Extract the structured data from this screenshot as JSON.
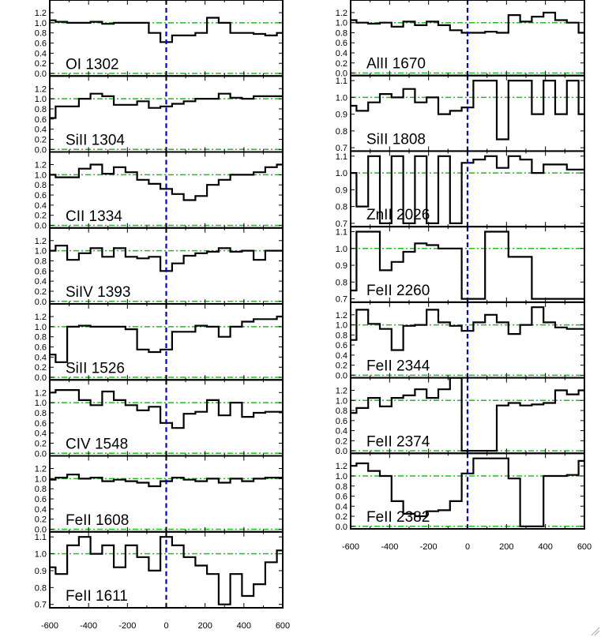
{
  "chart_data": {
    "type": "line",
    "line_style": "step",
    "x_tick_labels": [
      "-600",
      "-400",
      "-200",
      "0",
      "200",
      "400",
      "600"
    ],
    "xlim": [
      -600,
      600
    ],
    "reference_lines": {
      "velocity_zero": 0,
      "continuum": 1.0,
      "zero_flux": 0.0
    },
    "colors": {
      "spectrum": "#000000",
      "velocity_zero": "#0000dd",
      "reference": "#22bb22"
    },
    "columns": [
      {
        "panels": [
          {
            "label": "OI 1302",
            "ylim": [
              -0.05,
              1.45
            ],
            "yticks": [
              "0.0",
              "0.2",
              "0.4",
              "0.6",
              "0.8",
              "1.0",
              "1.2"
            ],
            "x": [
              -600,
              -540,
              -480,
              -420,
              -360,
              -300,
              -240,
              -180,
              -120,
              -60,
              0,
              60,
              120,
              180,
              240,
              300,
              360,
              420,
              480,
              540,
              600
            ],
            "y": [
              1.05,
              1.02,
              1.0,
              1.0,
              1.02,
              0.98,
              1.0,
              1.0,
              1.0,
              0.8,
              0.62,
              0.75,
              0.75,
              0.8,
              1.1,
              1.0,
              0.8,
              0.8,
              0.78,
              0.75,
              0.8
            ]
          },
          {
            "label": "SiII 1304",
            "ylim": [
              -0.05,
              1.45
            ],
            "yticks": [
              "0.0",
              "0.2",
              "0.4",
              "0.6",
              "0.8",
              "1.0",
              "1.2"
            ],
            "x": [
              -600,
              -540,
              -480,
              -420,
              -360,
              -300,
              -240,
              -180,
              -120,
              -60,
              0,
              60,
              120,
              180,
              240,
              300,
              360,
              420,
              480,
              540,
              600
            ],
            "y": [
              0.62,
              0.85,
              0.85,
              1.0,
              1.1,
              1.05,
              0.88,
              0.88,
              0.95,
              0.82,
              0.85,
              0.9,
              0.95,
              1.0,
              1.0,
              1.1,
              1.02,
              1.0,
              1.05,
              1.05,
              1.05
            ]
          },
          {
            "label": "CII 1334",
            "ylim": [
              -0.05,
              1.45
            ],
            "yticks": [
              "0.0",
              "0.2",
              "0.4",
              "0.6",
              "0.8",
              "1.0",
              "1.2"
            ],
            "x": [
              -600,
              -540,
              -480,
              -420,
              -360,
              -300,
              -240,
              -180,
              -120,
              -60,
              0,
              60,
              120,
              180,
              240,
              300,
              360,
              420,
              480,
              540,
              600
            ],
            "y": [
              1.0,
              0.95,
              0.95,
              1.12,
              1.2,
              1.02,
              1.15,
              1.05,
              0.9,
              0.82,
              0.72,
              0.62,
              0.5,
              0.58,
              0.8,
              0.9,
              1.0,
              1.0,
              1.05,
              1.15,
              1.2
            ]
          },
          {
            "label": "SiIV 1393",
            "ylim": [
              -0.05,
              1.45
            ],
            "yticks": [
              "0.0",
              "0.2",
              "0.4",
              "0.6",
              "0.8",
              "1.0",
              "1.2"
            ],
            "x": [
              -600,
              -540,
              -480,
              -420,
              -360,
              -300,
              -240,
              -180,
              -120,
              -60,
              0,
              60,
              120,
              180,
              240,
              300,
              360,
              420,
              480,
              540,
              600
            ],
            "y": [
              1.0,
              1.1,
              0.82,
              0.95,
              1.05,
              0.88,
              1.05,
              0.88,
              0.85,
              0.88,
              0.6,
              0.75,
              0.9,
              0.95,
              0.98,
              1.05,
              0.98,
              1.0,
              0.82,
              1.0,
              1.0
            ]
          },
          {
            "label": "SiII 1526",
            "ylim": [
              -0.05,
              1.45
            ],
            "yticks": [
              "0.0",
              "0.2",
              "0.4",
              "0.6",
              "0.8",
              "1.0",
              "1.2"
            ],
            "x": [
              -600,
              -540,
              -480,
              -420,
              -360,
              -300,
              -240,
              -180,
              -120,
              -60,
              0,
              60,
              120,
              180,
              240,
              300,
              360,
              420,
              480,
              540,
              600
            ],
            "y": [
              0.45,
              0.3,
              1.0,
              1.02,
              1.0,
              1.0,
              1.0,
              0.95,
              0.55,
              0.5,
              0.55,
              0.9,
              0.9,
              1.02,
              1.0,
              0.8,
              1.0,
              1.1,
              1.15,
              1.15,
              1.2
            ]
          },
          {
            "label": "CIV 1548",
            "ylim": [
              -0.05,
              1.45
            ],
            "yticks": [
              "0.0",
              "0.2",
              "0.4",
              "0.6",
              "0.8",
              "1.0",
              "1.2"
            ],
            "x": [
              -600,
              -540,
              -480,
              -420,
              -360,
              -300,
              -240,
              -180,
              -120,
              -60,
              0,
              60,
              120,
              180,
              240,
              300,
              360,
              420,
              480,
              540,
              600
            ],
            "y": [
              1.2,
              1.25,
              1.25,
              1.05,
              0.95,
              1.22,
              1.05,
              0.95,
              0.85,
              0.92,
              0.6,
              0.5,
              0.78,
              0.82,
              1.05,
              0.75,
              1.0,
              0.72,
              0.8,
              0.82,
              0.82
            ]
          },
          {
            "label": "FeII 1608",
            "ylim": [
              -0.05,
              1.45
            ],
            "yticks": [
              "0.0",
              "0.2",
              "0.4",
              "0.6",
              "0.8",
              "1.0",
              "1.2"
            ],
            "x": [
              -600,
              -540,
              -480,
              -420,
              -360,
              -300,
              -240,
              -180,
              -120,
              -60,
              0,
              60,
              120,
              180,
              240,
              300,
              360,
              420,
              480,
              540,
              600
            ],
            "y": [
              0.98,
              1.02,
              1.08,
              1.0,
              1.02,
              0.95,
              0.98,
              0.95,
              0.92,
              0.85,
              0.95,
              1.02,
              0.98,
              0.95,
              1.0,
              0.92,
              1.0,
              0.95,
              1.0,
              1.02,
              1.02
            ]
          },
          {
            "label": "FeII 1611",
            "ylim": [
              0.68,
              1.13
            ],
            "yticks": [
              "0.7",
              "0.8",
              "0.9",
              "1.0",
              "1.1"
            ],
            "x": [
              -600,
              -540,
              -480,
              -420,
              -360,
              -300,
              -240,
              -180,
              -120,
              -60,
              0,
              60,
              120,
              180,
              240,
              300,
              360,
              420,
              480,
              540,
              600
            ],
            "y": [
              0.92,
              0.88,
              1.05,
              1.1,
              1.0,
              1.05,
              0.92,
              1.05,
              0.98,
              0.9,
              1.1,
              1.05,
              0.98,
              0.93,
              0.88,
              0.7,
              0.88,
              0.75,
              0.82,
              0.95,
              1.02
            ]
          }
        ]
      },
      {
        "panels": [
          {
            "label": "AlII 1670",
            "ylim": [
              -0.05,
              1.45
            ],
            "yticks": [
              "0.0",
              "0.2",
              "0.4",
              "0.6",
              "0.8",
              "1.0",
              "1.2"
            ],
            "x": [
              -600,
              -540,
              -480,
              -420,
              -360,
              -300,
              -240,
              -180,
              -120,
              -60,
              0,
              60,
              120,
              180,
              240,
              300,
              360,
              420,
              480,
              540,
              600
            ],
            "y": [
              1.05,
              1.0,
              0.98,
              1.0,
              0.92,
              1.02,
              0.95,
              1.02,
              0.95,
              0.85,
              0.8,
              0.8,
              0.82,
              0.8,
              1.15,
              1.02,
              1.12,
              1.2,
              1.05,
              1.0,
              0.8
            ]
          },
          {
            "label": "SiII 1808",
            "ylim": [
              0.68,
              1.13
            ],
            "yticks": [
              "0.7",
              "0.8",
              "0.9",
              "1.0",
              "1.1"
            ],
            "x": [
              -600,
              -540,
              -480,
              -420,
              -360,
              -300,
              -240,
              -180,
              -120,
              -60,
              0,
              60,
              120,
              180,
              240,
              300,
              360,
              420,
              480,
              540,
              600
            ],
            "y": [
              0.95,
              0.92,
              0.97,
              1.02,
              1.0,
              1.05,
              0.97,
              1.0,
              0.9,
              0.92,
              0.94,
              1.1,
              1.1,
              0.75,
              1.1,
              1.1,
              0.9,
              1.1,
              0.9,
              1.1,
              0.9
            ]
          },
          {
            "label": "ZnII 2026",
            "ylim": [
              0.68,
              1.13
            ],
            "yticks": [
              "0.7",
              "0.8",
              "0.9",
              "1.0",
              "1.1"
            ],
            "x": [
              -600,
              -540,
              -480,
              -420,
              -360,
              -300,
              -240,
              -180,
              -120,
              -60,
              0,
              60,
              120,
              180,
              240,
              300,
              360,
              420,
              480,
              540,
              600
            ],
            "y": [
              1.0,
              0.8,
              1.1,
              0.7,
              1.1,
              0.7,
              1.1,
              0.7,
              1.1,
              0.7,
              1.06,
              1.08,
              1.1,
              1.03,
              1.1,
              1.08,
              1.0,
              1.05,
              1.05,
              1.02,
              1.02
            ]
          },
          {
            "label": "FeII 2260",
            "ylim": [
              0.68,
              1.13
            ],
            "yticks": [
              "0.7",
              "0.8",
              "0.9",
              "1.0",
              "1.1"
            ],
            "x": [
              -600,
              -540,
              -480,
              -420,
              -360,
              -300,
              -240,
              -180,
              -120,
              -60,
              0,
              60,
              120,
              180,
              240,
              300,
              360,
              420,
              480,
              540,
              600
            ],
            "y": [
              0.75,
              1.1,
              1.1,
              0.87,
              0.92,
              0.98,
              1.03,
              1.02,
              1.0,
              1.0,
              0.7,
              0.7,
              1.1,
              1.1,
              0.95,
              0.95,
              0.7,
              0.7,
              0.7,
              0.7,
              0.7
            ]
          },
          {
            "label": "FeII 2344",
            "ylim": [
              -0.05,
              1.45
            ],
            "yticks": [
              "0.0",
              "0.2",
              "0.4",
              "0.6",
              "0.8",
              "1.0",
              "1.2"
            ],
            "x": [
              -600,
              -540,
              -480,
              -420,
              -360,
              -300,
              -240,
              -180,
              -120,
              -60,
              0,
              60,
              120,
              180,
              240,
              300,
              360,
              420,
              480,
              540,
              600
            ],
            "y": [
              0.7,
              1.3,
              1.02,
              0.92,
              0.5,
              0.98,
              1.0,
              1.3,
              1.05,
              0.98,
              0.88,
              1.05,
              1.2,
              1.05,
              0.82,
              1.0,
              1.35,
              1.05,
              0.95,
              0.92,
              0.92
            ]
          },
          {
            "label": "FeII 2374",
            "ylim": [
              -0.05,
              1.45
            ],
            "yticks": [
              "0.0",
              "0.2",
              "0.4",
              "0.6",
              "0.8",
              "1.0",
              "1.2"
            ],
            "x": [
              -600,
              -540,
              -480,
              -420,
              -360,
              -300,
              -240,
              -180,
              -120,
              -60,
              0,
              60,
              120,
              180,
              240,
              300,
              360,
              420,
              480,
              540,
              600
            ],
            "y": [
              0.75,
              0.85,
              1.05,
              0.88,
              1.05,
              1.1,
              1.22,
              1.05,
              1.22,
              1.5,
              0.0,
              0.0,
              0.0,
              0.9,
              0.95,
              0.9,
              0.92,
              0.95,
              1.2,
              1.12,
              1.2
            ]
          },
          {
            "label": "FeII 2382",
            "ylim": [
              -0.05,
              1.45
            ],
            "yticks": [
              "0.0",
              "0.2",
              "0.4",
              "0.6",
              "0.8",
              "1.0",
              "1.2"
            ],
            "x": [
              -600,
              -540,
              -480,
              -420,
              -360,
              -300,
              -240,
              -180,
              -120,
              -60,
              0,
              60,
              120,
              180,
              240,
              300,
              360,
              420,
              480,
              540,
              600
            ],
            "y": [
              1.2,
              1.25,
              1.1,
              1.0,
              0.5,
              0.25,
              0.2,
              0.3,
              0.32,
              0.5,
              1.05,
              1.35,
              1.35,
              1.35,
              0.95,
              0.0,
              0.0,
              1.0,
              1.0,
              1.02,
              1.3
            ]
          }
        ]
      }
    ]
  }
}
